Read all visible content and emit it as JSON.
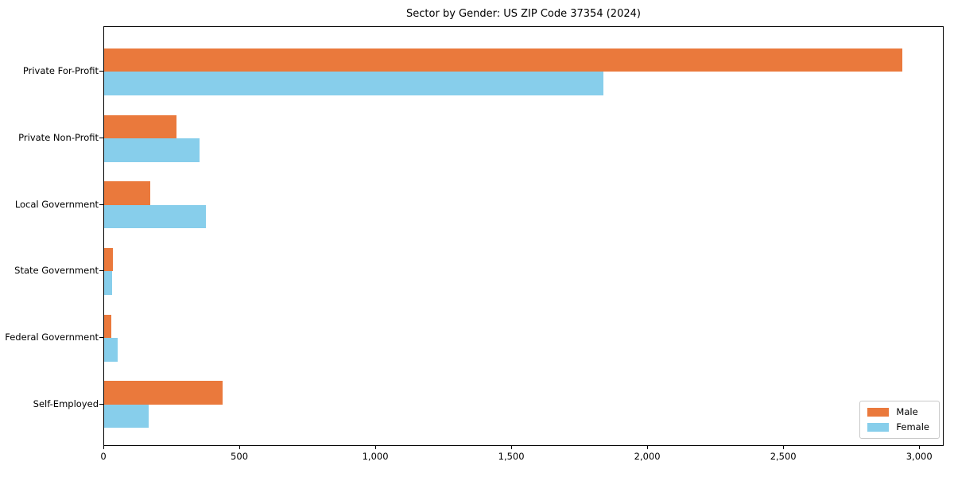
{
  "chart_data": {
    "type": "bar",
    "orientation": "horizontal",
    "title": "Sector by Gender: US ZIP Code 37354 (2024)",
    "categories": [
      "Private For-Profit",
      "Private Non-Profit",
      "Local Government",
      "State Government",
      "Federal Government",
      "Self-Employed"
    ],
    "series": [
      {
        "name": "Male",
        "color": "#EA793C",
        "values": [
          2935,
          265,
          170,
          33,
          27,
          435
        ]
      },
      {
        "name": "Female",
        "color": "#87CEEB",
        "values": [
          1835,
          350,
          375,
          28,
          50,
          165
        ]
      }
    ],
    "xlabel": "",
    "ylabel": "",
    "xlim": [
      0,
      3090
    ],
    "xticks": [
      {
        "value": 0,
        "label": "0"
      },
      {
        "value": 500,
        "label": "500"
      },
      {
        "value": 1000,
        "label": "1,000"
      },
      {
        "value": 1500,
        "label": "1,500"
      },
      {
        "value": 2000,
        "label": "2,000"
      },
      {
        "value": 2500,
        "label": "2,500"
      },
      {
        "value": 3000,
        "label": "3,000"
      }
    ],
    "grid": false,
    "legend_position": "lower right",
    "axis_color": "#000000",
    "background_color": "#ffffff"
  }
}
